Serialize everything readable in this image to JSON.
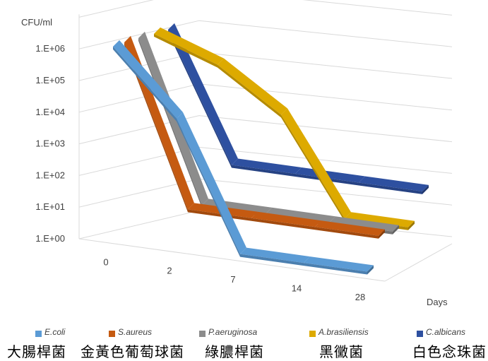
{
  "chart_data": {
    "type": "line",
    "style": "3d",
    "ylabel": "CFU/ml",
    "xlabel": "Days",
    "scale": "log",
    "categories": [
      "0",
      "2",
      "7",
      "14",
      "28"
    ],
    "ytick_labels": [
      "1.E+00",
      "1.E+01",
      "1.E+02",
      "1.E+03",
      "1.E+04",
      "1.E+05",
      "1.E+06"
    ],
    "ylim_log10": [
      0,
      6.4
    ],
    "grid": true,
    "legend_position": "bottom",
    "series": [
      {
        "name": "E.coli",
        "name_cn": "大腸桿菌",
        "color": "#5b9bd5",
        "log10_values": [
          6.0,
          4.0,
          0.0,
          0.0,
          0.0
        ]
      },
      {
        "name": "S.aureus",
        "name_cn": "金黃色葡萄球菌",
        "color": "#c55a11",
        "log10_values": [
          6.0,
          1.0,
          1.0,
          1.0,
          1.0
        ]
      },
      {
        "name": "P.aeruginosa",
        "name_cn": "綠膿桿菌",
        "color": "#8c8c8c",
        "log10_values": [
          6.0,
          1.0,
          1.0,
          1.0,
          1.0
        ]
      },
      {
        "name": "A.brasiliensis",
        "name_cn": "黑黴菌",
        "color": "#ddaa00",
        "log10_values": [
          6.0,
          5.3,
          4.0,
          1.0,
          1.0
        ]
      },
      {
        "name": "C.albicans",
        "name_cn": "白色念珠菌",
        "color": "#2e50a0",
        "log10_values": [
          6.0,
          2.0,
          2.0,
          2.0,
          2.0
        ]
      }
    ]
  }
}
